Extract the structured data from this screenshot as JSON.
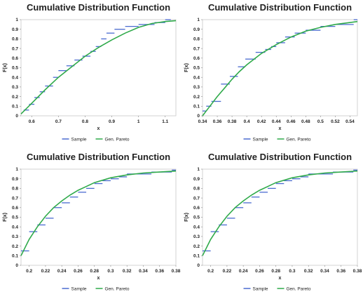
{
  "colors": {
    "sample": "#4a6bd0",
    "fit": "#2faa4a",
    "frame": "#c8c8c8"
  },
  "chart_data": [
    {
      "type": "line",
      "title": "Cumulative Distribution Function",
      "xlabel": "x",
      "ylabel": "F(x)",
      "xlim": [
        0.56,
        1.14
      ],
      "ylim": [
        0,
        1
      ],
      "x_ticks": [
        "0.6",
        "0.7",
        "0.8",
        "0.9",
        "1",
        "1.1"
      ],
      "y_ticks": [
        "0",
        "0.1",
        "0.2",
        "0.3",
        "0.4",
        "0.5",
        "0.6",
        "0.7",
        "0.8",
        "0.9",
        "1"
      ],
      "legend": [
        "Sample",
        "Gen. Pareto"
      ],
      "legend_position": "bottom",
      "series": [
        {
          "name": "Sample",
          "style": "step",
          "x": [
            0.57,
            0.59,
            0.61,
            0.63,
            0.65,
            0.68,
            0.7,
            0.73,
            0.76,
            0.79,
            0.82,
            0.84,
            0.86,
            0.88,
            0.91,
            0.95,
            1.0,
            1.06,
            1.1
          ],
          "y": [
            0.06,
            0.12,
            0.19,
            0.25,
            0.31,
            0.4,
            0.47,
            0.52,
            0.58,
            0.62,
            0.67,
            0.72,
            0.8,
            0.86,
            0.9,
            0.93,
            0.95,
            0.97,
            1.0
          ]
        },
        {
          "name": "Gen. Pareto",
          "style": "line",
          "x": [
            0.56,
            0.6,
            0.65,
            0.7,
            0.75,
            0.8,
            0.85,
            0.9,
            0.95,
            1.0,
            1.05,
            1.1,
            1.14
          ],
          "y": [
            0.02,
            0.13,
            0.27,
            0.4,
            0.51,
            0.62,
            0.71,
            0.79,
            0.86,
            0.92,
            0.96,
            0.98,
            0.99
          ]
        }
      ]
    },
    {
      "type": "line",
      "title": "Cumulative Distribution Function",
      "xlabel": "x",
      "ylabel": "F(x)",
      "xlim": [
        0.34,
        0.55
      ],
      "ylim": [
        0,
        1
      ],
      "x_ticks": [
        "0.34",
        "0.36",
        "0.38",
        "0.4",
        "0.42",
        "0.44",
        "0.46",
        "0.48",
        "0.5",
        "0.52",
        "0.54"
      ],
      "y_ticks": [
        "0",
        "0.1",
        "0.2",
        "0.3",
        "0.4",
        "0.5",
        "0.6",
        "0.7",
        "0.8",
        "0.9",
        "1"
      ],
      "legend": [
        "Sample",
        "Gen. Pareto"
      ],
      "legend_position": "bottom",
      "series": [
        {
          "name": "Sample",
          "style": "step",
          "x": [
            0.34,
            0.345,
            0.352,
            0.365,
            0.377,
            0.388,
            0.398,
            0.412,
            0.425,
            0.433,
            0.44,
            0.452,
            0.465,
            0.48,
            0.5,
            0.52,
            0.545
          ],
          "y": [
            0.05,
            0.1,
            0.15,
            0.33,
            0.41,
            0.51,
            0.59,
            0.66,
            0.69,
            0.72,
            0.76,
            0.82,
            0.86,
            0.89,
            0.93,
            0.95,
            1.0
          ]
        },
        {
          "name": "Gen. Pareto",
          "style": "line",
          "x": [
            0.34,
            0.35,
            0.36,
            0.37,
            0.38,
            0.39,
            0.4,
            0.42,
            0.44,
            0.46,
            0.48,
            0.5,
            0.52,
            0.54,
            0.55
          ],
          "y": [
            0.0,
            0.1,
            0.2,
            0.29,
            0.38,
            0.46,
            0.53,
            0.65,
            0.74,
            0.82,
            0.88,
            0.92,
            0.95,
            0.97,
            0.98
          ]
        }
      ]
    },
    {
      "type": "line",
      "title": "Cumulative Distribution Function",
      "xlabel": "x",
      "ylabel": "F(x)",
      "xlim": [
        0.19,
        0.38
      ],
      "ylim": [
        0,
        1
      ],
      "x_ticks": [
        "0.2",
        "0.22",
        "0.24",
        "0.26",
        "0.28",
        "0.3",
        "0.32",
        "0.34",
        "0.36",
        "0.38"
      ],
      "y_ticks": [
        "0",
        "0.1",
        "0.2",
        "0.3",
        "0.4",
        "0.5",
        "0.6",
        "0.7",
        "0.8",
        "0.9",
        "1"
      ],
      "legend": [
        "Sample",
        "Gen. Pareto"
      ],
      "legend_position": "bottom",
      "series": [
        {
          "name": "Sample",
          "style": "step",
          "x": [
            0.19,
            0.2,
            0.21,
            0.22,
            0.23,
            0.24,
            0.25,
            0.26,
            0.27,
            0.28,
            0.29,
            0.3,
            0.31,
            0.32,
            0.35,
            0.375
          ],
          "y": [
            0.15,
            0.35,
            0.42,
            0.49,
            0.6,
            0.65,
            0.71,
            0.76,
            0.8,
            0.85,
            0.88,
            0.9,
            0.92,
            0.95,
            0.97,
            0.99
          ]
        },
        {
          "name": "Gen. Pareto",
          "style": "line",
          "x": [
            0.19,
            0.2,
            0.21,
            0.22,
            0.23,
            0.24,
            0.25,
            0.26,
            0.27,
            0.28,
            0.3,
            0.32,
            0.34,
            0.36,
            0.38
          ],
          "y": [
            0.1,
            0.27,
            0.4,
            0.51,
            0.6,
            0.67,
            0.73,
            0.78,
            0.82,
            0.86,
            0.91,
            0.94,
            0.96,
            0.97,
            0.98
          ]
        }
      ]
    },
    {
      "type": "line",
      "title": "Cumulative Distribution Function",
      "xlabel": "x",
      "ylabel": "F(x)",
      "xlim": [
        0.19,
        0.38
      ],
      "ylim": [
        0,
        1
      ],
      "x_ticks": [
        "0.2",
        "0.22",
        "0.24",
        "0.26",
        "0.28",
        "0.3",
        "0.32",
        "0.34",
        "0.36",
        "0.38"
      ],
      "y_ticks": [
        "0",
        "0.1",
        "0.2",
        "0.3",
        "0.4",
        "0.5",
        "0.6",
        "0.7",
        "0.8",
        "0.9",
        "1"
      ],
      "legend": [
        "Sample",
        "Gen. Pareto"
      ],
      "legend_position": "bottom",
      "series": [
        {
          "name": "Sample",
          "style": "step",
          "x": [
            0.19,
            0.2,
            0.21,
            0.22,
            0.23,
            0.24,
            0.25,
            0.26,
            0.27,
            0.28,
            0.29,
            0.3,
            0.31,
            0.32,
            0.35,
            0.375
          ],
          "y": [
            0.15,
            0.35,
            0.42,
            0.49,
            0.6,
            0.65,
            0.71,
            0.76,
            0.8,
            0.85,
            0.88,
            0.9,
            0.92,
            0.95,
            0.97,
            0.99
          ]
        },
        {
          "name": "Gen. Pareto",
          "style": "line",
          "x": [
            0.19,
            0.2,
            0.21,
            0.22,
            0.23,
            0.24,
            0.25,
            0.26,
            0.27,
            0.28,
            0.3,
            0.32,
            0.34,
            0.36,
            0.38
          ],
          "y": [
            0.1,
            0.27,
            0.4,
            0.51,
            0.6,
            0.67,
            0.73,
            0.78,
            0.82,
            0.86,
            0.91,
            0.94,
            0.96,
            0.97,
            0.98
          ]
        }
      ]
    }
  ]
}
